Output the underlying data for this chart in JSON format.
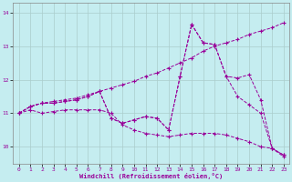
{
  "xlabel": "Windchill (Refroidissement éolien,°C)",
  "background_color": "#c5edf0",
  "line_color": "#990099",
  "grid_color": "#aacccc",
  "xlim": [
    -0.5,
    23.5
  ],
  "ylim": [
    9.5,
    14.3
  ],
  "yticks": [
    10,
    11,
    12,
    13,
    14
  ],
  "xticks": [
    0,
    1,
    2,
    3,
    4,
    5,
    6,
    7,
    8,
    9,
    10,
    11,
    12,
    13,
    14,
    15,
    16,
    17,
    18,
    19,
    20,
    21,
    22,
    23
  ],
  "lines": [
    [
      11.0,
      11.2,
      11.3,
      11.35,
      11.4,
      11.45,
      11.55,
      11.65,
      11.75,
      11.85,
      11.95,
      12.1,
      12.2,
      12.35,
      12.5,
      12.65,
      12.85,
      13.0,
      13.1,
      13.2,
      13.35,
      13.45,
      13.55,
      13.7
    ],
    [
      11.0,
      11.2,
      11.3,
      11.3,
      11.35,
      11.4,
      11.5,
      11.65,
      10.85,
      10.7,
      10.8,
      10.9,
      10.85,
      10.5,
      12.1,
      13.65,
      13.1,
      13.05,
      12.1,
      12.05,
      12.15,
      11.4,
      9.95,
      9.75
    ],
    [
      11.0,
      11.2,
      11.3,
      11.3,
      11.35,
      11.4,
      11.5,
      11.65,
      10.85,
      10.7,
      10.8,
      10.9,
      10.85,
      10.5,
      12.1,
      13.65,
      13.1,
      13.05,
      12.1,
      11.5,
      11.25,
      11.0,
      9.95,
      9.75
    ],
    [
      11.0,
      11.1,
      11.0,
      11.05,
      11.1,
      11.1,
      11.1,
      11.1,
      11.0,
      10.65,
      10.5,
      10.4,
      10.35,
      10.3,
      10.35,
      10.4,
      10.4,
      10.4,
      10.35,
      10.25,
      10.15,
      10.0,
      9.95,
      9.7
    ]
  ]
}
